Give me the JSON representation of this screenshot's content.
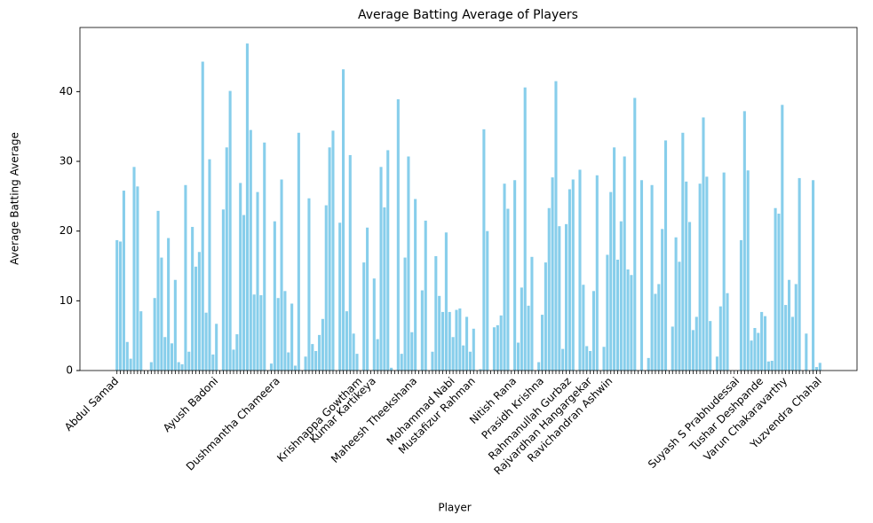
{
  "chart_data": {
    "type": "bar",
    "title": "Average Batting Average of Players",
    "xlabel": "Player",
    "ylabel": "Average Batting Average",
    "color": "#87ceeb",
    "ylim": [
      0,
      49.2
    ],
    "yticks": [
      0,
      10,
      20,
      30,
      40
    ],
    "categories": [
      "Abdul Samad",
      null,
      null,
      null,
      null,
      null,
      null,
      null,
      null,
      null,
      null,
      null,
      null,
      null,
      null,
      null,
      null,
      null,
      null,
      null,
      null,
      null,
      null,
      null,
      null,
      null,
      null,
      null,
      null,
      "Ayush Badoni",
      null,
      null,
      null,
      null,
      null,
      null,
      null,
      null,
      null,
      null,
      null,
      null,
      null,
      null,
      null,
      null,
      null,
      "Dushmantha Chameera",
      null,
      null,
      null,
      null,
      null,
      null,
      null,
      null,
      null,
      null,
      null,
      null,
      null,
      null,
      null,
      null,
      null,
      null,
      null,
      null,
      null,
      null,
      null,
      "Krishnappa Gowtham",
      null,
      null,
      null,
      "Kumar Kartikeya",
      null,
      null,
      null,
      null,
      null,
      null,
      null,
      null,
      null,
      null,
      null,
      "Maheesh Theekshana",
      null,
      null,
      null,
      null,
      null,
      null,
      null,
      null,
      null,
      null,
      "Mohammad Nabi",
      null,
      null,
      null,
      null,
      null,
      "Mustafizur Rahman",
      null,
      null,
      null,
      null,
      null,
      null,
      null,
      null,
      null,
      null,
      null,
      "Nitish Rana",
      null,
      null,
      null,
      null,
      null,
      null,
      null,
      "Prasidh Krishna",
      null,
      null,
      null,
      null,
      null,
      null,
      null,
      "Rahmanullah Gurbaz",
      null,
      null,
      null,
      null,
      null,
      "Rajvardhan Hangargekar",
      null,
      null,
      null,
      null,
      null,
      "Ravichandran Ashwin",
      null,
      null,
      null,
      null,
      null,
      null,
      null,
      null,
      null,
      null,
      null,
      null,
      null,
      null,
      null,
      null,
      null,
      null,
      null,
      null,
      null,
      null,
      null,
      null,
      null,
      null,
      null,
      null,
      null,
      null,
      null,
      null,
      null,
      null,
      null,
      null,
      "Suyash S Prabhudessai",
      null,
      null,
      null,
      null,
      null,
      null,
      "Tushar Deshpande",
      null,
      null,
      null,
      null,
      null,
      null,
      "Varun Chakaravarthy",
      null,
      null,
      null,
      null,
      null,
      null,
      null,
      null,
      null,
      "Yuzvendra Chahal"
    ],
    "values": [
      18.7,
      18.5,
      25.8,
      4.1,
      1.7,
      29.2,
      26.4,
      8.5,
      0,
      0,
      1.2,
      10.4,
      22.9,
      16.2,
      4.8,
      19,
      3.9,
      13,
      1.2,
      0.9,
      26.6,
      2.7,
      20.6,
      14.9,
      17,
      44.3,
      8.3,
      30.3,
      2.3,
      6.7,
      0,
      23.1,
      32,
      40.1,
      3,
      5.2,
      26.9,
      22.3,
      46.9,
      34.5,
      10.9,
      25.6,
      10.8,
      32.7,
      0,
      1,
      21.4,
      10.4,
      27.4,
      11.4,
      2.6,
      9.6,
      0.7,
      34.1,
      0,
      2,
      24.7,
      3.8,
      2.8,
      5.1,
      7.4,
      23.7,
      32,
      34.4,
      0,
      21.2,
      43.2,
      8.5,
      30.9,
      5.3,
      2.4,
      0,
      15.5,
      20.5,
      0,
      13.2,
      4.5,
      29.2,
      23.4,
      31.6,
      0.4,
      0,
      38.9,
      2.4,
      16.2,
      30.7,
      5.5,
      24.6,
      0,
      11.5,
      21.5,
      0,
      2.7,
      16.4,
      10.7,
      8.4,
      19.8,
      8.4,
      4.8,
      8.7,
      8.9,
      3.6,
      7.7,
      2.7,
      6,
      0,
      0.2,
      34.6,
      20,
      0,
      6.2,
      6.5,
      7.9,
      26.8,
      23.2,
      0,
      27.3,
      4,
      11.9,
      40.6,
      9.3,
      16.3,
      0,
      1.2,
      8,
      15.5,
      23.3,
      27.7,
      41.5,
      20.7,
      3.1,
      21,
      26,
      27.4,
      0,
      28.8,
      12.3,
      3.5,
      2.8,
      11.4,
      28,
      0,
      3.4,
      16.6,
      25.6,
      32,
      15.9,
      21.4,
      30.7,
      14.5,
      13.7,
      39.1,
      0,
      27.3,
      0,
      1.8,
      26.6,
      11,
      12.4,
      20.3,
      33,
      0,
      6.3,
      19.1,
      15.6,
      34.1,
      27.1,
      21.3,
      5.8,
      7.7,
      26.8,
      36.3,
      27.8,
      7.1,
      0,
      2,
      9.2,
      28.4,
      11.1,
      0,
      0,
      0,
      18.7,
      37.2,
      28.7,
      4.3,
      6.1,
      5.4,
      8.4,
      7.8,
      1.3,
      1.4,
      23.3,
      22.5,
      38.1,
      9.4,
      13,
      7.7,
      12.4,
      27.6,
      0,
      5.3,
      0,
      27.3,
      0.5,
      1.1
    ]
  }
}
